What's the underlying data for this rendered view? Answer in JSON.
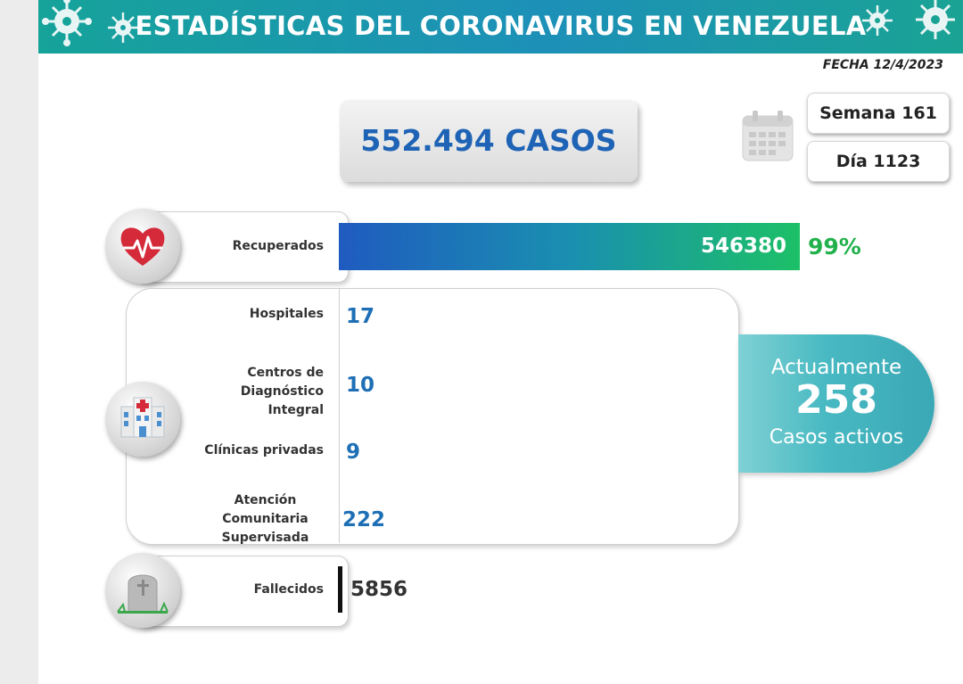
{
  "header": {
    "title": "ESTADÍSTICAS DEL CORONAVIRUS EN VENEZUELA",
    "date": "FECHA 12/4/2023",
    "colors": {
      "banner_start": "#16a39a",
      "banner_end": "#1d90b8"
    }
  },
  "summary": {
    "total_cases": "552.494 CASOS",
    "week": "Semana 161",
    "day": "Día 1123"
  },
  "recovered": {
    "label": "Recuperados",
    "value": "546380",
    "percent": "99%",
    "icon": "heart-pulse-icon"
  },
  "hospitalized": {
    "icon": "hospital-icon",
    "items": [
      {
        "label": "Hospitales",
        "value": "17"
      },
      {
        "label_lines": [
          "Centros de",
          "Diagnóstico Integral"
        ],
        "value": "10"
      },
      {
        "label": "Clínicas privadas",
        "value": "9"
      },
      {
        "label_lines": [
          "Atención",
          "Comunitaria",
          "Supervisada"
        ],
        "value": "222"
      }
    ]
  },
  "active": {
    "line1": "Actualmente",
    "count": "258",
    "line2": "Casos activos"
  },
  "deaths": {
    "label": "Fallecidos",
    "value": "5856",
    "icon": "tombstone-icon"
  }
}
